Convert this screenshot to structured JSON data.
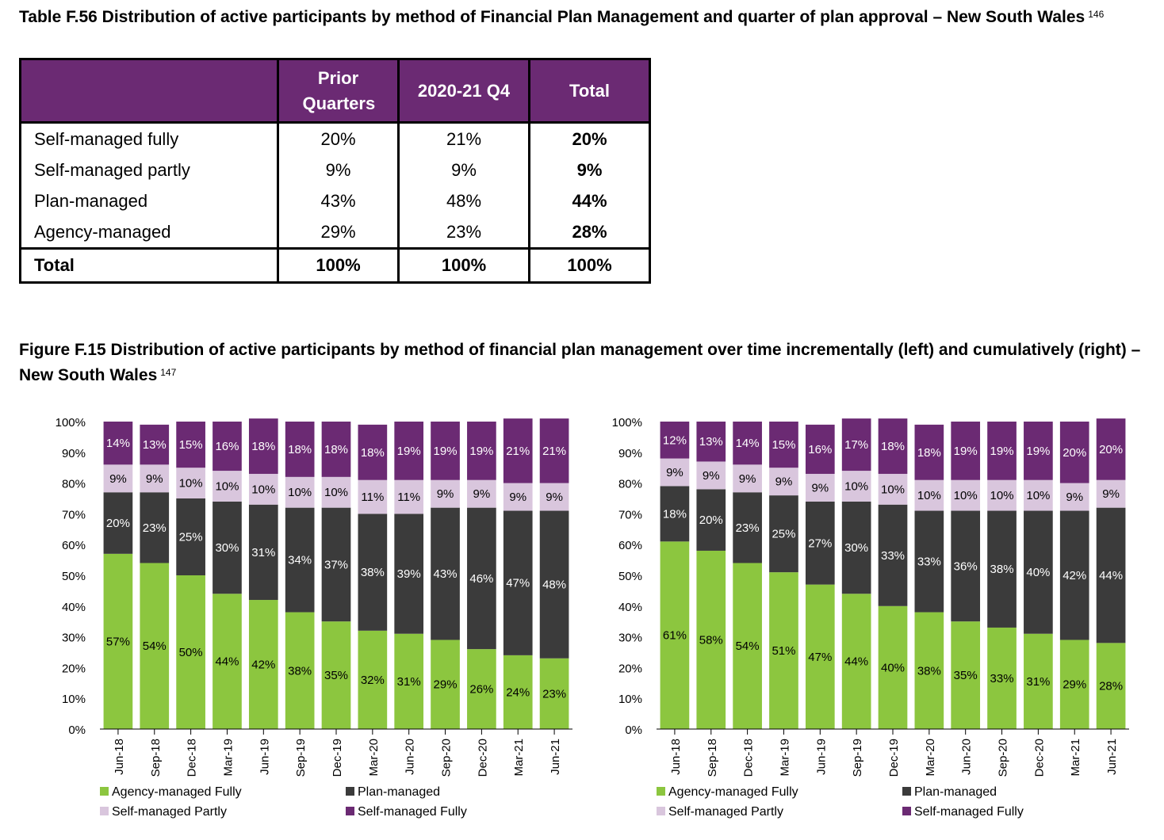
{
  "table_title": {
    "text": "Table F.56 Distribution of active participants by method of Financial Plan Management and quarter of plan approval – New South Wales",
    "footnote": "146"
  },
  "table": {
    "headers": [
      "",
      "Prior Quarters",
      "2020-21 Q4",
      "Total"
    ],
    "rows": [
      [
        "Self-managed fully",
        "20%",
        "21%",
        "20%"
      ],
      [
        "Self-managed partly",
        "9%",
        "9%",
        "9%"
      ],
      [
        "Plan-managed",
        "43%",
        "48%",
        "44%"
      ],
      [
        "Agency-managed",
        "29%",
        "23%",
        "28%"
      ]
    ],
    "total_row": [
      "Total",
      "100%",
      "100%",
      "100%"
    ]
  },
  "figure_title": {
    "text": "Figure F.15 Distribution of active participants by method of financial plan management over time incrementally (left) and cumulatively (right) – New South Wales",
    "footnote": "147"
  },
  "colors": {
    "agency": "#8cc63f",
    "plan": "#3b3b3b",
    "self_partly": "#d9c6dd",
    "self_fully": "#6b2a73",
    "header_bg": "#6b2a73"
  },
  "chart_data": [
    {
      "type": "bar",
      "stacked": true,
      "categories": [
        "Jun-18",
        "Sep-18",
        "Dec-18",
        "Mar-19",
        "Jun-19",
        "Sep-19",
        "Dec-19",
        "Mar-20",
        "Jun-20",
        "Sep-20",
        "Dec-20",
        "Mar-21",
        "Jun-21"
      ],
      "yticks": [
        "0%",
        "10%",
        "20%",
        "30%",
        "40%",
        "50%",
        "60%",
        "70%",
        "80%",
        "90%",
        "100%"
      ],
      "ylim": [
        0,
        100
      ],
      "legend_position": "bottom",
      "series": [
        {
          "name": "Agency-managed Fully",
          "values": [
            57,
            54,
            50,
            44,
            42,
            38,
            35,
            32,
            31,
            29,
            26,
            24,
            23
          ]
        },
        {
          "name": "Plan-managed",
          "values": [
            20,
            23,
            25,
            30,
            31,
            34,
            37,
            38,
            39,
            43,
            46,
            47,
            48
          ]
        },
        {
          "name": "Self-managed Partly",
          "values": [
            9,
            9,
            10,
            10,
            10,
            10,
            10,
            11,
            11,
            9,
            9,
            9,
            9
          ]
        },
        {
          "name": "Self-managed Fully",
          "values": [
            14,
            13,
            15,
            16,
            18,
            18,
            18,
            18,
            19,
            19,
            19,
            21,
            21
          ]
        }
      ]
    },
    {
      "type": "bar",
      "stacked": true,
      "categories": [
        "Jun-18",
        "Sep-18",
        "Dec-18",
        "Mar-19",
        "Jun-19",
        "Sep-19",
        "Dec-19",
        "Mar-20",
        "Jun-20",
        "Sep-20",
        "Dec-20",
        "Mar-21",
        "Jun-21"
      ],
      "yticks": [
        "0%",
        "10%",
        "20%",
        "30%",
        "40%",
        "50%",
        "60%",
        "70%",
        "80%",
        "90%",
        "100%"
      ],
      "ylim": [
        0,
        100
      ],
      "legend_position": "bottom",
      "series": [
        {
          "name": "Agency-managed Fully",
          "values": [
            61,
            58,
            54,
            51,
            47,
            44,
            40,
            38,
            35,
            33,
            31,
            29,
            28
          ]
        },
        {
          "name": "Plan-managed",
          "values": [
            18,
            20,
            23,
            25,
            27,
            30,
            33,
            33,
            36,
            38,
            40,
            42,
            44
          ]
        },
        {
          "name": "Self-managed Partly",
          "values": [
            9,
            9,
            9,
            9,
            9,
            10,
            10,
            10,
            10,
            10,
            10,
            9,
            9
          ]
        },
        {
          "name": "Self-managed Fully",
          "values": [
            12,
            13,
            14,
            15,
            16,
            17,
            18,
            18,
            19,
            19,
            19,
            20,
            20
          ]
        }
      ]
    }
  ]
}
